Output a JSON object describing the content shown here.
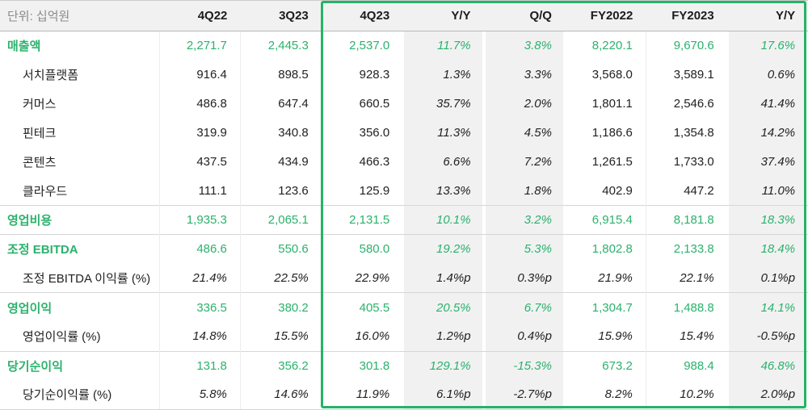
{
  "colors": {
    "green_text": "#2bb26c",
    "highlight_border": "#26b366",
    "shade_background": "#f1f1f2",
    "header_background": "#f1f1f1"
  },
  "chart_data": {
    "type": "table",
    "unit_label": "단위: 십억원",
    "columns": [
      "4Q22",
      "3Q23",
      "4Q23",
      "Y/Y",
      "Q/Q",
      "FY2022",
      "FY2023",
      "Y/Y"
    ],
    "shaded_columns": [
      "Y/Y",
      "Q/Q",
      "Y/Y"
    ],
    "highlighted_columns": [
      "4Q23",
      "Y/Y",
      "Q/Q",
      "FY2022",
      "FY2023",
      "Y/Y"
    ],
    "rows": [
      {
        "label": "매출액",
        "section": true,
        "indent": false,
        "separator": false,
        "values": [
          "2,271.7",
          "2,445.3",
          "2,537.0",
          "11.7%",
          "3.8%",
          "8,220.1",
          "9,670.6",
          "17.6%"
        ]
      },
      {
        "label": "서치플랫폼",
        "section": false,
        "indent": true,
        "separator": false,
        "values": [
          "916.4",
          "898.5",
          "928.3",
          "1.3%",
          "3.3%",
          "3,568.0",
          "3,589.1",
          "0.6%"
        ]
      },
      {
        "label": "커머스",
        "section": false,
        "indent": true,
        "separator": false,
        "values": [
          "486.8",
          "647.4",
          "660.5",
          "35.7%",
          "2.0%",
          "1,801.1",
          "2,546.6",
          "41.4%"
        ]
      },
      {
        "label": "핀테크",
        "section": false,
        "indent": true,
        "separator": false,
        "values": [
          "319.9",
          "340.8",
          "356.0",
          "11.3%",
          "4.5%",
          "1,186.6",
          "1,354.8",
          "14.2%"
        ]
      },
      {
        "label": "콘텐츠",
        "section": false,
        "indent": true,
        "separator": false,
        "values": [
          "437.5",
          "434.9",
          "466.3",
          "6.6%",
          "7.2%",
          "1,261.5",
          "1,733.0",
          "37.4%"
        ]
      },
      {
        "label": "클라우드",
        "section": false,
        "indent": true,
        "separator": false,
        "values": [
          "111.1",
          "123.6",
          "125.9",
          "13.3%",
          "1.8%",
          "402.9",
          "447.2",
          "11.0%"
        ]
      },
      {
        "label": "영업비용",
        "section": true,
        "indent": false,
        "separator": true,
        "values": [
          "1,935.3",
          "2,065.1",
          "2,131.5",
          "10.1%",
          "3.2%",
          "6,915.4",
          "8,181.8",
          "18.3%"
        ]
      },
      {
        "label": "조정 EBITDA",
        "section": true,
        "indent": false,
        "separator": true,
        "values": [
          "486.6",
          "550.6",
          "580.0",
          "19.2%",
          "5.3%",
          "1,802.8",
          "2,133.8",
          "18.4%"
        ]
      },
      {
        "label": "조정 EBITDA 이익률 (%)",
        "section": false,
        "indent": true,
        "separator": false,
        "values": [
          "21.4%",
          "22.5%",
          "22.9%",
          "1.4%p",
          "0.3%p",
          "21.9%",
          "22.1%",
          "0.1%p"
        ]
      },
      {
        "label": "영업이익",
        "section": true,
        "indent": false,
        "separator": true,
        "values": [
          "336.5",
          "380.2",
          "405.5",
          "20.5%",
          "6.7%",
          "1,304.7",
          "1,488.8",
          "14.1%"
        ]
      },
      {
        "label": "영업이익률 (%)",
        "section": false,
        "indent": true,
        "separator": false,
        "values": [
          "14.8%",
          "15.5%",
          "16.0%",
          "1.2%p",
          "0.4%p",
          "15.9%",
          "15.4%",
          "-0.5%p"
        ]
      },
      {
        "label": "당기순이익",
        "section": true,
        "indent": false,
        "separator": true,
        "values": [
          "131.8",
          "356.2",
          "301.8",
          "129.1%",
          "-15.3%",
          "673.2",
          "988.4",
          "46.8%"
        ]
      },
      {
        "label": "당기순이익률 (%)",
        "section": false,
        "indent": true,
        "separator": false,
        "values": [
          "5.8%",
          "14.6%",
          "11.9%",
          "6.1%p",
          "-2.7%p",
          "8.2%",
          "10.2%",
          "2.0%p"
        ]
      }
    ]
  }
}
